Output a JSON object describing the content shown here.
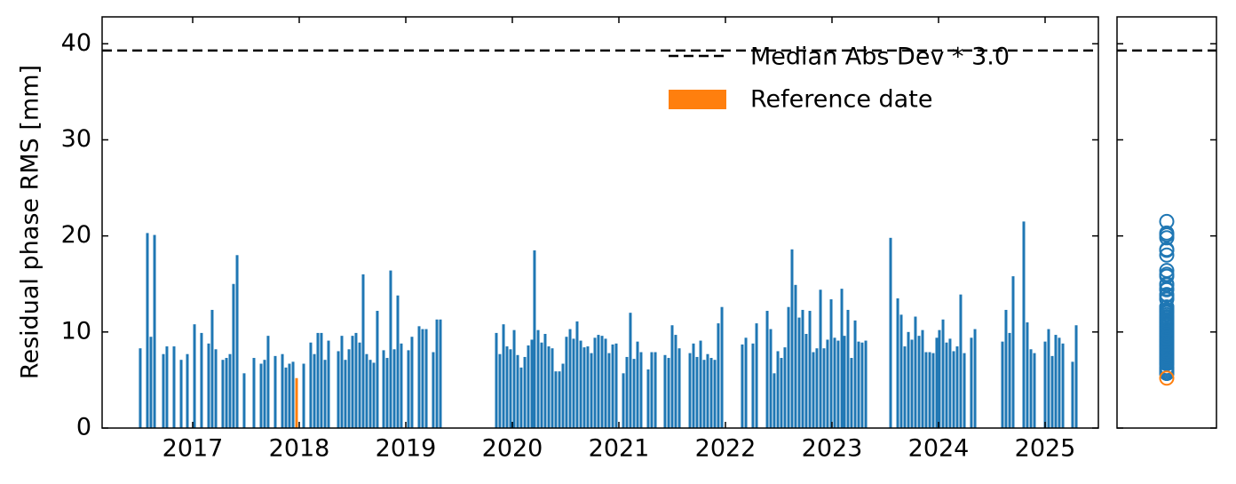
{
  "chart_data": {
    "type": "bar",
    "ylabel": "Residual phase RMS [mm]",
    "xlim": [
      2016.15,
      2025.5
    ],
    "xticks": [
      2017,
      2018,
      2019,
      2020,
      2021,
      2022,
      2023,
      2024,
      2025
    ],
    "ylim": [
      0,
      42.8
    ],
    "yticks": [
      0,
      10,
      20,
      30,
      40
    ],
    "color": "#1f77b4",
    "legend": "upper right",
    "x": [
      2016.508,
      2016.575,
      2016.608,
      2016.642,
      2016.725,
      2016.758,
      2016.825,
      2016.892,
      2016.95,
      2017.017,
      2017.083,
      2017.15,
      2017.183,
      2017.217,
      2017.283,
      2017.317,
      2017.35,
      2017.383,
      2017.417,
      2017.483,
      2017.575,
      2017.642,
      2017.675,
      2017.708,
      2017.775,
      2017.842,
      2017.875,
      2017.908,
      2017.942,
      2018.042,
      2018.108,
      2018.142,
      2018.175,
      2018.208,
      2018.242,
      2018.275,
      2018.367,
      2018.4,
      2018.433,
      2018.467,
      2018.5,
      2018.533,
      2018.567,
      2018.6,
      2018.633,
      2018.667,
      2018.7,
      2018.733,
      2018.792,
      2018.825,
      2018.858,
      2018.892,
      2018.925,
      2018.958,
      2019.025,
      2019.058,
      2019.125,
      2019.158,
      2019.192,
      2019.258,
      2019.292,
      2019.325,
      2019.85,
      2019.883,
      2019.917,
      2019.95,
      2019.983,
      2020.017,
      2020.05,
      2020.083,
      2020.117,
      2020.15,
      2020.183,
      2020.208,
      2020.242,
      2020.275,
      2020.308,
      2020.342,
      2020.375,
      2020.408,
      2020.442,
      2020.475,
      2020.508,
      2020.542,
      2020.575,
      2020.608,
      2020.642,
      2020.675,
      2020.708,
      2020.742,
      2020.775,
      2020.808,
      2020.842,
      2020.875,
      2020.908,
      2020.942,
      2020.975,
      2021.042,
      2021.075,
      2021.108,
      2021.142,
      2021.175,
      2021.208,
      2021.275,
      2021.308,
      2021.342,
      2021.433,
      2021.467,
      2021.5,
      2021.533,
      2021.567,
      2021.667,
      2021.7,
      2021.733,
      2021.767,
      2021.8,
      2021.833,
      2021.867,
      2021.9,
      2021.933,
      2021.967,
      2022.158,
      2022.192,
      2022.258,
      2022.292,
      2022.392,
      2022.425,
      2022.458,
      2022.492,
      2022.525,
      2022.558,
      2022.592,
      2022.625,
      2022.658,
      2022.692,
      2022.725,
      2022.758,
      2022.792,
      2022.825,
      2022.858,
      2022.892,
      2022.925,
      2022.958,
      2022.992,
      2023.025,
      2023.058,
      2023.092,
      2023.117,
      2023.15,
      2023.183,
      2023.217,
      2023.25,
      2023.283,
      2023.317,
      2023.55,
      2023.617,
      2023.65,
      2023.683,
      2023.717,
      2023.75,
      2023.783,
      2023.817,
      2023.85,
      2023.883,
      2023.917,
      2023.95,
      2023.983,
      2024.008,
      2024.042,
      2024.075,
      2024.108,
      2024.142,
      2024.175,
      2024.208,
      2024.242,
      2024.308,
      2024.342,
      2024.6,
      2024.633,
      2024.667,
      2024.7,
      2024.8,
      2024.833,
      2024.867,
      2024.9,
      2025.0,
      2025.033,
      2025.067,
      2025.1,
      2025.133,
      2025.167,
      2025.258,
      2025.292
    ],
    "values": [
      8.3,
      20.3,
      9.5,
      20.1,
      7.7,
      8.5,
      8.5,
      7.1,
      7.7,
      10.8,
      9.9,
      8.8,
      12.3,
      8.2,
      7.1,
      7.3,
      7.7,
      15.0,
      18.0,
      5.7,
      7.3,
      6.7,
      7.1,
      9.6,
      7.5,
      7.7,
      6.3,
      6.7,
      6.9,
      6.7,
      8.9,
      7.7,
      9.9,
      9.9,
      7.1,
      9.1,
      8.0,
      9.6,
      7.1,
      8.2,
      9.6,
      9.9,
      8.9,
      16.0,
      7.7,
      7.1,
      6.8,
      12.2,
      8.1,
      7.3,
      16.4,
      8.2,
      13.8,
      8.8,
      8.1,
      9.5,
      10.6,
      10.3,
      10.3,
      7.9,
      11.3,
      11.3,
      9.9,
      7.7,
      10.8,
      8.5,
      8.2,
      10.2,
      7.6,
      6.3,
      7.4,
      8.6,
      9.2,
      18.5,
      10.2,
      8.9,
      9.8,
      8.5,
      8.3,
      5.9,
      5.9,
      6.7,
      9.5,
      10.3,
      9.3,
      11.1,
      9.1,
      8.4,
      8.5,
      7.8,
      9.4,
      9.7,
      9.6,
      9.3,
      7.8,
      8.7,
      8.8,
      5.7,
      7.4,
      12.0,
      7.2,
      9.0,
      7.9,
      6.1,
      7.9,
      7.9,
      7.6,
      7.3,
      10.7,
      9.7,
      8.3,
      7.8,
      8.8,
      7.4,
      9.1,
      7.1,
      7.7,
      7.3,
      7.1,
      10.9,
      12.6,
      8.7,
      9.4,
      8.8,
      10.9,
      12.2,
      10.3,
      5.7,
      8.0,
      7.3,
      8.4,
      12.6,
      18.6,
      14.9,
      11.5,
      12.3,
      9.8,
      12.2,
      7.9,
      8.3,
      14.4,
      8.3,
      9.2,
      13.4,
      9.4,
      9.1,
      14.5,
      9.6,
      12.3,
      7.3,
      11.2,
      9.0,
      8.9,
      9.1,
      19.8,
      13.5,
      11.8,
      8.5,
      10.0,
      9.2,
      11.6,
      9.6,
      10.2,
      7.9,
      7.9,
      7.8,
      9.4,
      10.2,
      11.3,
      8.9,
      9.3,
      8.0,
      8.5,
      13.9,
      7.8,
      9.4,
      10.3,
      9.0,
      12.3,
      9.9,
      15.8,
      21.5,
      11.0,
      8.2,
      7.8,
      9.0,
      10.3,
      7.5,
      9.7,
      9.4,
      8.8,
      6.9,
      10.7
    ],
    "reference": {
      "name": "Reference date",
      "color": "#ff7f0e",
      "x": 2017.975,
      "value": 5.2
    },
    "threshold": {
      "name": "Median Abs Dev * 3.0",
      "value": 39.3,
      "color": "#000000"
    }
  }
}
